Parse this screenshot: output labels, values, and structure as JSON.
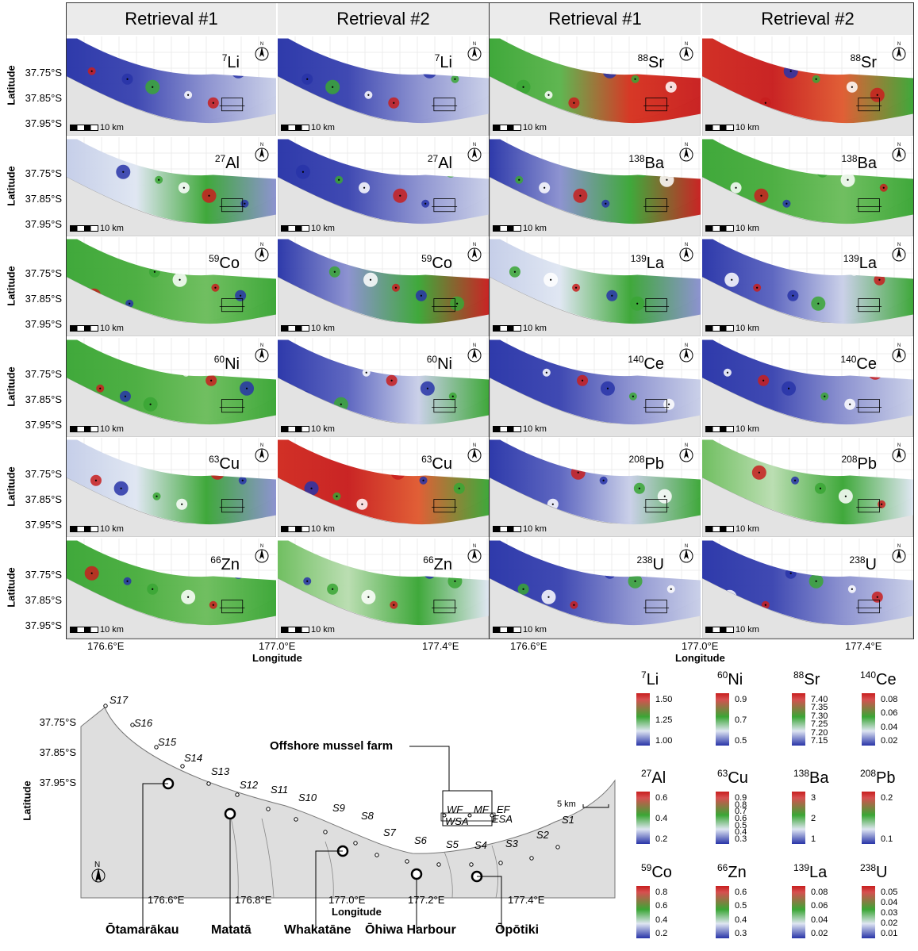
{
  "headers": [
    "Retrieval #1",
    "Retrieval #2",
    "Retrieval #1",
    "Retrieval #2"
  ],
  "lat_ticks": [
    "37.75°S",
    "37.85°S",
    "37.95°S"
  ],
  "lon_ticks": [
    "176.6°E",
    "177.0°E",
    "177.4°E"
  ],
  "axis": {
    "latitude": "Latitude",
    "longitude": "Longitude"
  },
  "scalebar_label": "10 km",
  "north_label": "N",
  "panels": [
    {
      "iso": "Li",
      "mass": "7",
      "theme": "blue"
    },
    {
      "iso": "Li",
      "mass": "7",
      "theme": "blue"
    },
    {
      "iso": "Sr",
      "mass": "88",
      "theme": "green-red"
    },
    {
      "iso": "Sr",
      "mass": "88",
      "theme": "red"
    },
    {
      "iso": "Al",
      "mass": "27",
      "theme": "lightblue"
    },
    {
      "iso": "Al",
      "mass": "27",
      "theme": "blue"
    },
    {
      "iso": "Ba",
      "mass": "138",
      "theme": "blue-red"
    },
    {
      "iso": "Ba",
      "mass": "138",
      "theme": "green"
    },
    {
      "iso": "Co",
      "mass": "59",
      "theme": "green"
    },
    {
      "iso": "Co",
      "mass": "59",
      "theme": "blue-red"
    },
    {
      "iso": "La",
      "mass": "139",
      "theme": "lightblue"
    },
    {
      "iso": "La",
      "mass": "139",
      "theme": "blue-green"
    },
    {
      "iso": "Ni",
      "mass": "60",
      "theme": "green"
    },
    {
      "iso": "Ni",
      "mass": "60",
      "theme": "blue-green"
    },
    {
      "iso": "Ce",
      "mass": "140",
      "theme": "blue"
    },
    {
      "iso": "Ce",
      "mass": "140",
      "theme": "blue"
    },
    {
      "iso": "Cu",
      "mass": "63",
      "theme": "lightblue"
    },
    {
      "iso": "Cu",
      "mass": "63",
      "theme": "red"
    },
    {
      "iso": "Pb",
      "mass": "208",
      "theme": "blue-green"
    },
    {
      "iso": "Pb",
      "mass": "208",
      "theme": "lightgreen"
    },
    {
      "iso": "Zn",
      "mass": "66",
      "theme": "green"
    },
    {
      "iso": "Zn",
      "mass": "66",
      "theme": "lightgreen"
    },
    {
      "iso": "U",
      "mass": "238",
      "theme": "blue"
    },
    {
      "iso": "U",
      "mass": "238",
      "theme": "blue"
    }
  ],
  "overview": {
    "lat_ticks": [
      "37.75°S",
      "37.85°S",
      "37.95°S"
    ],
    "lon_ticks": [
      "176.6°E",
      "176.8°E",
      "177.0°E",
      "177.2°E",
      "177.4°E"
    ],
    "ylabel": "Latitude",
    "xlabel": "Longitude",
    "farm_label": "Offshore mussel farm",
    "farm_sites": [
      "WF",
      "MF",
      "EF",
      "WSA",
      "ESA"
    ],
    "sites": [
      "S17",
      "S16",
      "S15",
      "S14",
      "S13",
      "S12",
      "S11",
      "S10",
      "S9",
      "S8",
      "S7",
      "S6",
      "S5",
      "S4",
      "S3",
      "S2",
      "S1"
    ],
    "places": [
      "Ōtamarākau",
      "Matatā",
      "Whakatāne",
      "Ōhiwa Harbour",
      "Ōpōtiki"
    ],
    "scale_label": "5 km",
    "north_label": "N"
  },
  "legends": [
    {
      "mass": "7",
      "iso": "Li",
      "ticks": [
        "1.50",
        "1.25",
        "1.00"
      ]
    },
    {
      "mass": "60",
      "iso": "Ni",
      "ticks": [
        "0.9",
        "0.7",
        "0.5"
      ]
    },
    {
      "mass": "88",
      "iso": "Sr",
      "ticks": [
        "7.40",
        "7.35",
        "7.30",
        "7.25",
        "7.20",
        "7.15"
      ]
    },
    {
      "mass": "140",
      "iso": "Ce",
      "ticks": [
        "0.08",
        "0.06",
        "0.04",
        "0.02"
      ]
    },
    {
      "mass": "27",
      "iso": "Al",
      "ticks": [
        "0.6",
        "0.4",
        "0.2"
      ]
    },
    {
      "mass": "63",
      "iso": "Cu",
      "ticks": [
        "0.9",
        "0.8",
        "0.7",
        "0.6",
        "0.5",
        "0.4",
        "0.3"
      ]
    },
    {
      "mass": "138",
      "iso": "Ba",
      "ticks": [
        "3",
        "2",
        "1"
      ]
    },
    {
      "mass": "208",
      "iso": "Pb",
      "ticks": [
        "0.2",
        "0.1"
      ]
    },
    {
      "mass": "59",
      "iso": "Co",
      "ticks": [
        "0.8",
        "0.6",
        "0.4",
        "0.2"
      ]
    },
    {
      "mass": "66",
      "iso": "Zn",
      "ticks": [
        "0.6",
        "0.5",
        "0.4",
        "0.3"
      ]
    },
    {
      "mass": "139",
      "iso": "La",
      "ticks": [
        "0.08",
        "0.06",
        "0.04",
        "0.02"
      ]
    },
    {
      "mass": "238",
      "iso": "U",
      "ticks": [
        "0.05",
        "0.04",
        "0.03",
        "0.02",
        "0.01"
      ]
    }
  ],
  "colors": {
    "red": "#c81e1e",
    "green": "#3aa635",
    "blue": "#2834a8",
    "light": "#dfe6f2",
    "land": "#d9d9d9"
  }
}
